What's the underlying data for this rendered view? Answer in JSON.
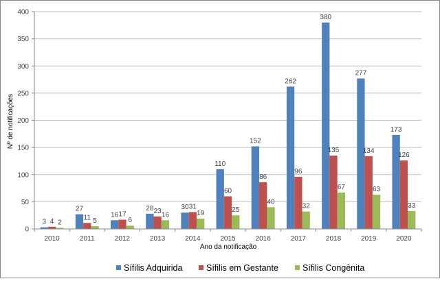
{
  "chart_data": {
    "type": "bar",
    "title": "",
    "xlabel": "Ano da notificação",
    "ylabel": "Nº de notificações",
    "ylim": [
      0,
      400
    ],
    "yticks": [
      0,
      50,
      100,
      150,
      200,
      250,
      300,
      350,
      400
    ],
    "grid": true,
    "legend_position": "bottom",
    "categories": [
      "2010",
      "2011",
      "2012",
      "2013",
      "2014",
      "2015",
      "2016",
      "2017",
      "2018",
      "2019",
      "2020"
    ],
    "series": [
      {
        "name": "Sífilis Adquirida",
        "color": "#4F81BD",
        "values": [
          3,
          27,
          16,
          28,
          30,
          110,
          152,
          262,
          380,
          277,
          173
        ]
      },
      {
        "name": "Sífilis em Gestante",
        "color": "#C0504D",
        "values": [
          4,
          11,
          17,
          23,
          31,
          60,
          86,
          96,
          135,
          134,
          126
        ]
      },
      {
        "name": "Sífilis Congênita",
        "color": "#9BBB59",
        "values": [
          2,
          5,
          6,
          16,
          19,
          25,
          40,
          32,
          67,
          63,
          33
        ]
      }
    ]
  }
}
